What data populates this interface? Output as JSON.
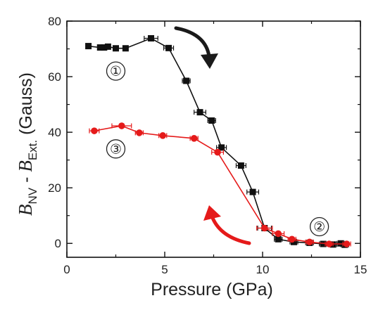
{
  "chart_data": {
    "type": "line",
    "xlabel": "Pressure (GPa)",
    "ylabel": {
      "b1": "B",
      "sub1": "NV",
      "sep": " - ",
      "b2": "B",
      "sub2": "Ext.",
      "unit": " (Gauss)"
    },
    "xlim": [
      0,
      15
    ],
    "ylim": [
      -5,
      80
    ],
    "xticks": [
      0,
      5,
      10,
      15
    ],
    "yticks": [
      0,
      20,
      40,
      60,
      80
    ],
    "xtick_labels": [
      "0",
      "5",
      "10",
      "15"
    ],
    "ytick_labels": [
      "0",
      "20",
      "40",
      "60",
      "80"
    ],
    "grid": false,
    "legend": "none",
    "series": [
      {
        "color": "#111111",
        "marker": "square",
        "x": [
          1.1,
          1.7,
          1.9,
          2.1,
          2.5,
          3.0,
          4.3,
          5.2,
          6.1,
          6.8,
          7.4,
          7.9,
          8.9,
          9.5,
          10.1,
          10.8,
          11.6,
          12.4,
          13.1,
          13.6,
          14.0,
          14.2
        ],
        "y": [
          71,
          70.5,
          70.5,
          70.8,
          70.2,
          70.2,
          73.8,
          70.3,
          58.5,
          47.2,
          44.2,
          34.5,
          28,
          18.5,
          5.5,
          1.5,
          0.5,
          0.2,
          -0.2,
          -0.4,
          0,
          -0.5
        ],
        "xerr": [
          0,
          0,
          0,
          0,
          0,
          0,
          0.35,
          0.25,
          0.2,
          0.3,
          0.2,
          0.25,
          0.25,
          0.3,
          0.35,
          0.2,
          0.2,
          0.2,
          0.2,
          0.2,
          0.2,
          0.2
        ]
      },
      {
        "color": "#e51a1a",
        "marker": "circle",
        "x": [
          1.4,
          2.8,
          3.7,
          4.9,
          6.5,
          7.7,
          10.1,
          10.8,
          11.5,
          12.4,
          13.4,
          14.3
        ],
        "y": [
          40.5,
          42.3,
          39.8,
          38.8,
          37.8,
          32.8,
          5.5,
          3.5,
          1.5,
          0.5,
          -0.2,
          -0.2
        ],
        "xerr": [
          0.25,
          0.5,
          0.2,
          0.2,
          0.2,
          0.3,
          0.4,
          0.3,
          0.2,
          0.2,
          0.2,
          0.2
        ]
      }
    ],
    "annotations": [
      {
        "text": "①",
        "x": 2.5,
        "y": 62
      },
      {
        "text": "③",
        "x": 2.5,
        "y": 34
      },
      {
        "text": "②",
        "x": 12.9,
        "y": 6
      }
    ],
    "arrows": [
      {
        "color": "#1a1a1a",
        "direction": "down"
      },
      {
        "color": "#e51a1a",
        "direction": "up"
      }
    ]
  }
}
